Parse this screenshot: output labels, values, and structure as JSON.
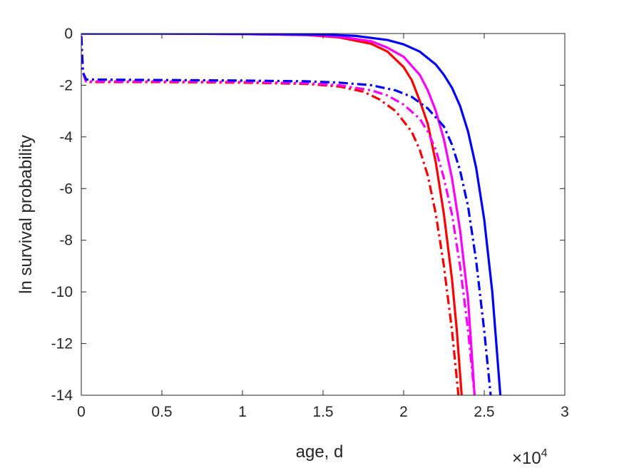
{
  "chart_data": {
    "type": "line",
    "title": "",
    "xlabel": "age, d",
    "ylabel": "ln survival probability",
    "x_multiplier_label": "×10",
    "x_multiplier_exponent": "4",
    "xlim": [
      0,
      30000
    ],
    "ylim": [
      -14,
      0
    ],
    "xticks": [
      0,
      5000,
      10000,
      15000,
      20000,
      25000,
      30000
    ],
    "xtick_labels": [
      "0",
      "0.5",
      "1",
      "1.5",
      "2",
      "2.5",
      "3"
    ],
    "yticks": [
      0,
      -2,
      -4,
      -6,
      -8,
      -10,
      -12,
      -14
    ],
    "ytick_labels": [
      "0",
      "-2",
      "-4",
      "-6",
      "-8",
      "-10",
      "-12",
      "-14"
    ],
    "grid": false,
    "legend": "none",
    "series": [
      {
        "color": "#ff0000",
        "style": "solid",
        "x": [
          0,
          5000,
          10000,
          14000,
          16000,
          18000,
          19000,
          20000,
          20500,
          21000,
          21500,
          22000,
          22500,
          23000,
          23300,
          23600
        ],
        "y": [
          0,
          0,
          -0.02,
          -0.06,
          -0.15,
          -0.4,
          -0.7,
          -1.3,
          -1.8,
          -2.6,
          -3.5,
          -5.0,
          -7.0,
          -9.5,
          -11.5,
          -14
        ]
      },
      {
        "color": "#ff00ff",
        "style": "solid",
        "x": [
          0,
          5000,
          10000,
          14000,
          16000,
          18000,
          19000,
          20000,
          21000,
          21500,
          22000,
          22500,
          23000,
          23500,
          24000,
          24400
        ],
        "y": [
          0,
          0,
          -0.02,
          -0.05,
          -0.12,
          -0.3,
          -0.55,
          -0.9,
          -1.6,
          -2.2,
          -3.0,
          -4.1,
          -5.6,
          -7.6,
          -10.3,
          -14
        ]
      },
      {
        "color": "#0000ff",
        "style": "solid",
        "x": [
          0,
          5000,
          10000,
          15000,
          17000,
          19000,
          20000,
          21000,
          22000,
          22500,
          23000,
          23500,
          24000,
          24500,
          25000,
          25500,
          26000
        ],
        "y": [
          0,
          0,
          -0.01,
          -0.04,
          -0.09,
          -0.25,
          -0.42,
          -0.7,
          -1.2,
          -1.6,
          -2.1,
          -2.8,
          -3.8,
          -5.2,
          -7.2,
          -10.0,
          -14
        ]
      },
      {
        "color": "#ff0000",
        "style": "dashdot",
        "x": [
          0,
          100,
          300,
          5000,
          10000,
          14000,
          16000,
          17500,
          18500,
          19500,
          20500,
          21000,
          21500,
          22000,
          22500,
          23000,
          23400
        ],
        "y": [
          -0.1,
          -1.5,
          -1.88,
          -1.88,
          -1.9,
          -1.95,
          -2.05,
          -2.25,
          -2.55,
          -3.0,
          -3.8,
          -4.5,
          -5.5,
          -7.0,
          -9.0,
          -11.5,
          -14
        ]
      },
      {
        "color": "#ff00ff",
        "style": "dashdot",
        "x": [
          0,
          100,
          300,
          5000,
          10000,
          14000,
          16000,
          18000,
          19000,
          20000,
          21000,
          21500,
          22000,
          22500,
          23000,
          23500,
          24000,
          24400
        ],
        "y": [
          -0.1,
          -1.5,
          -1.85,
          -1.85,
          -1.87,
          -1.92,
          -2.0,
          -2.2,
          -2.4,
          -2.75,
          -3.3,
          -3.8,
          -4.5,
          -5.6,
          -7.0,
          -9.0,
          -11.5,
          -14
        ]
      },
      {
        "color": "#0000ff",
        "style": "dashdot",
        "x": [
          0,
          100,
          300,
          5000,
          10000,
          14000,
          16000,
          18000,
          19500,
          20500,
          21500,
          22500,
          23000,
          23500,
          24000,
          24500,
          25000,
          25400
        ],
        "y": [
          -0.1,
          -1.5,
          -1.78,
          -1.8,
          -1.82,
          -1.85,
          -1.9,
          -2.0,
          -2.2,
          -2.45,
          -2.9,
          -3.6,
          -4.3,
          -5.3,
          -6.7,
          -8.8,
          -11.5,
          -14
        ]
      }
    ]
  }
}
